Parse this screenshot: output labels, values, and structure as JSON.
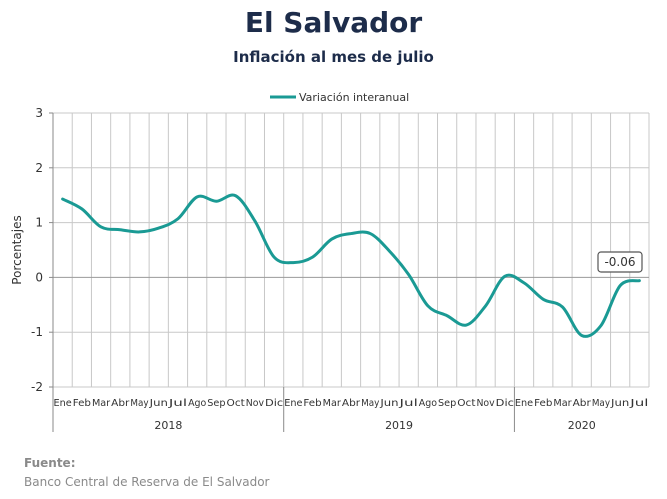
{
  "header": {
    "title": "El Salvador",
    "subtitle": "Inflación al mes de julio"
  },
  "source": {
    "label": "Fuente:",
    "text": "Banco Central de Reserva de El Salvador"
  },
  "colors": {
    "series": "#1a9a94",
    "grid": "#c8c8c8",
    "axis": "#8a8a8a",
    "zero_line": "#9a9a9a"
  },
  "chart_data": {
    "type": "line",
    "title": "El Salvador",
    "subtitle": "Inflación al mes de julio",
    "ylabel": "Porcentajes",
    "xlabel": "",
    "ylim": [
      -2,
      3
    ],
    "yticks": [
      -2,
      -1,
      0,
      1,
      2,
      3
    ],
    "grid": true,
    "legend_position": "top-center",
    "x": [
      "Ene",
      "Feb",
      "Mar",
      "Abr",
      "May",
      "Jun",
      "Jul",
      "Ago",
      "Sep",
      "Oct",
      "Nov",
      "Dic",
      "Ene",
      "Feb",
      "Mar",
      "Abr",
      "May",
      "Jun",
      "Jul",
      "Ago",
      "Sep",
      "Oct",
      "Nov",
      "Dic",
      "Ene",
      "Feb",
      "Mar",
      "Abr",
      "May",
      "Jun",
      "Jul"
    ],
    "years": [
      {
        "label": "2018",
        "start": 0,
        "end": 11
      },
      {
        "label": "2019",
        "start": 12,
        "end": 23
      },
      {
        "label": "2020",
        "start": 24,
        "end": 30
      }
    ],
    "series": [
      {
        "name": "Variación interanual",
        "values": [
          1.43,
          1.25,
          0.92,
          0.87,
          0.83,
          0.9,
          1.07,
          1.47,
          1.39,
          1.49,
          1.03,
          0.37,
          0.27,
          0.37,
          0.7,
          0.8,
          0.8,
          0.48,
          0.05,
          -0.52,
          -0.7,
          -0.87,
          -0.52,
          0.02,
          -0.1,
          -0.4,
          -0.54,
          -1.06,
          -0.88,
          -0.15,
          -0.06
        ]
      }
    ],
    "annotations": [
      {
        "label": "-0.06",
        "index": 30,
        "value": -0.06
      }
    ]
  }
}
